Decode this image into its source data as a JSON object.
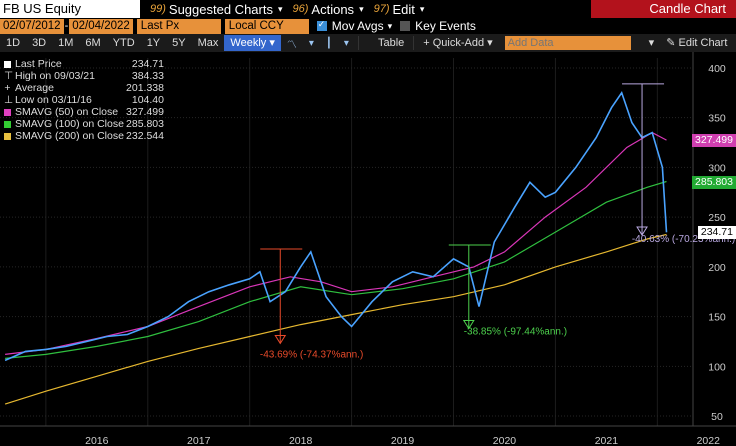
{
  "toolbar1": {
    "ticker": "FB US Equity",
    "suggested": {
      "num": "99)",
      "label": "Suggested Charts"
    },
    "actions": {
      "num": "96)",
      "label": "Actions"
    },
    "edit": {
      "num": "97)",
      "label": "Edit"
    },
    "chart_title": "Candle Chart"
  },
  "toolbar2": {
    "start_date": "02/07/2012",
    "end_date": "02/04/2022",
    "field": "Last Px",
    "currency": "Local CCY",
    "mov_avgs": "Mov Avgs",
    "key_events": "Key Events"
  },
  "toolbar3": {
    "periods": [
      "1D",
      "3D",
      "1M",
      "6M",
      "YTD",
      "1Y",
      "5Y",
      "Max"
    ],
    "frequency": "Weekly",
    "table": "Table",
    "quick_add": "+ Quick-Add",
    "add_data_placeholder": "Add Data",
    "edit_chart": "Edit Chart"
  },
  "legend": [
    {
      "label": "Last Price",
      "value": "234.71",
      "color": "#ffffff",
      "kind": "box"
    },
    {
      "label": "High on 09/03/21",
      "value": "384.33",
      "color": "#aaaaaa",
      "kind": "high"
    },
    {
      "label": "Average",
      "value": "201.338",
      "color": "#aaaaaa",
      "kind": "avg"
    },
    {
      "label": "Low on 03/11/16",
      "value": "104.40",
      "color": "#aaaaaa",
      "kind": "low"
    },
    {
      "label": "SMAVG (50)  on Close",
      "value": "327.499",
      "color": "#e040c0",
      "kind": "sw"
    },
    {
      "label": "SMAVG (100)  on Close",
      "value": "285.803",
      "color": "#33cc33",
      "kind": "sw"
    },
    {
      "label": "SMAVG (200)  on Close",
      "value": "232.544",
      "color": "#e8c040",
      "kind": "sw"
    }
  ],
  "price_tags": [
    {
      "value": "327.499",
      "color": "#d03fb0",
      "price": 327.5
    },
    {
      "value": "285.803",
      "color": "#22aa33",
      "price": 285.8
    },
    {
      "value": "234.71",
      "color": "#ffffff",
      "price": 234.71,
      "text_color": "#000"
    }
  ],
  "annotations": [
    {
      "text": "-43.69% (-74.37%ann.)",
      "color": "#e84a2a"
    },
    {
      "text": "-38.85% (-97.44%ann.)",
      "color": "#4cd04c"
    },
    {
      "text": "-40.63% (-70.23%ann.)",
      "color": "#b9a8e0"
    }
  ],
  "chart_data": {
    "type": "line",
    "y_axis": {
      "ticks": [
        50,
        100,
        150,
        200,
        250,
        300,
        350,
        400
      ],
      "min": 40,
      "max": 410,
      "side": "right"
    },
    "x_axis": {
      "labels": [
        "2016",
        "2017",
        "2018",
        "2019",
        "2020",
        "2021",
        "2022"
      ]
    },
    "series": [
      {
        "name": "Last Price",
        "color": "#4aa3ff",
        "x": [
          2015.6,
          2015.8,
          2016.0,
          2016.2,
          2016.4,
          2016.6,
          2016.8,
          2017.0,
          2017.2,
          2017.4,
          2017.6,
          2017.8,
          2018.0,
          2018.1,
          2018.2,
          2018.35,
          2018.5,
          2018.6,
          2018.75,
          2018.9,
          2019.0,
          2019.2,
          2019.4,
          2019.6,
          2019.8,
          2020.0,
          2020.15,
          2020.25,
          2020.4,
          2020.6,
          2020.75,
          2020.9,
          2021.0,
          2021.2,
          2021.4,
          2021.55,
          2021.65,
          2021.75,
          2021.85,
          2021.95,
          2022.05,
          2022.09
        ],
        "y": [
          106,
          115,
          117,
          120,
          125,
          130,
          132,
          140,
          150,
          165,
          175,
          182,
          188,
          195,
          165,
          175,
          200,
          215,
          170,
          150,
          140,
          165,
          185,
          195,
          190,
          208,
          200,
          160,
          225,
          260,
          285,
          270,
          275,
          300,
          330,
          360,
          375,
          345,
          330,
          335,
          300,
          234.71
        ]
      },
      {
        "name": "SMAVG (50)",
        "color": "#d936b8",
        "x": [
          2015.6,
          2016.0,
          2016.5,
          2017.0,
          2017.5,
          2018.0,
          2018.4,
          2018.7,
          2019.0,
          2019.4,
          2019.8,
          2020.2,
          2020.5,
          2020.9,
          2021.3,
          2021.7,
          2021.95,
          2022.09
        ],
        "y": [
          112,
          117,
          128,
          140,
          160,
          180,
          190,
          185,
          175,
          180,
          190,
          200,
          215,
          250,
          280,
          320,
          335,
          327.5
        ]
      },
      {
        "name": "SMAVG (100)",
        "color": "#2fbf3f",
        "x": [
          2015.6,
          2016.0,
          2016.5,
          2017.0,
          2017.5,
          2018.0,
          2018.5,
          2019.0,
          2019.5,
          2020.0,
          2020.5,
          2021.0,
          2021.5,
          2021.9,
          2022.09
        ],
        "y": [
          108,
          112,
          120,
          130,
          145,
          165,
          180,
          172,
          178,
          188,
          205,
          235,
          265,
          280,
          285.8
        ]
      },
      {
        "name": "SMAVG (200)",
        "color": "#e6b830",
        "x": [
          2015.6,
          2016.0,
          2016.5,
          2017.0,
          2017.5,
          2018.0,
          2018.5,
          2019.0,
          2019.5,
          2020.0,
          2020.5,
          2021.0,
          2021.5,
          2021.9,
          2022.09
        ],
        "y": [
          62,
          75,
          90,
          105,
          118,
          130,
          142,
          152,
          162,
          170,
          182,
          200,
          215,
          228,
          232.5
        ]
      }
    ]
  }
}
